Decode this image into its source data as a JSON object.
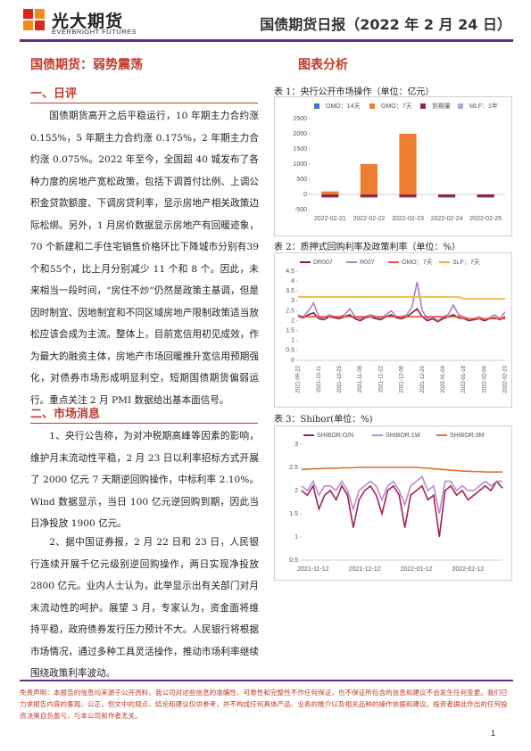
{
  "header": {
    "brand": "光大期货",
    "brand_en": "EVERBRIGHT FUTURES",
    "title": "国债期货日报（2022 年 2 月 24 日）"
  },
  "left": {
    "headline": "国债期货：弱势震荡",
    "section1": {
      "heading": "一、日评",
      "paragraphs": [
        "国债期货高开之后平稳运行，10 年期主力合约涨 0.155%，5 年期主力合约涨 0.175%，2 年期主力合约涨 0.075%。2022 年至今，全国超 40 城发布了各种力度的房地产宽松政策，包括下调首付比例、上调公积金贷款额度、下调房贷利率，显示房地产相关政策边际松绑。另外，1 月房价数据显示房地产有回暖迹象，70 个新建和二手住宅销售价格环比下降城市分别有39个和55个，比上月分别减少 11 个和 8 个。因此，未来相当一段时间，“房住不炒”仍然是政策主基调，但是因时制宜、因地制宜和不同区域房地产限制政策适当放松应该会成为主流。整体上，目前宽信用初见成效，作为最大的融资主体，房地产市场回暖推升宽信用预期强化，对债券市场形成明显利空，短期国债期货偏弱运行。重点关注 2 月 PMI 数据给出基本面信号。"
      ]
    },
    "section2": {
      "heading": "二、市场消息",
      "paragraphs": [
        "1、央行公告称，为对冲税期高峰等因素的影响，维护月末流动性平稳，2 月 23 日以利率招标方式开展了 2000 亿元 7 天期逆回购操作，中标利率 2.10%。Wind 数据显示，当日 100 亿元逆回购到期，因此当日净投放 1900 亿元。",
        "2、据中国证券报，2 月 22 日和 23 日，人民银行连续开展千亿元级别逆回购操作，两日实现净投放 2800 亿元。业内人士认为，此举显示出有关部门对月末流动性的呵护。展望 3 月，专家认为，资金面将维持平稳，政府债券发行压力预计不大。人民银行将根据市场情况，通过多种工具灵活操作，推动市场利率继续围绕政策利率波动。"
      ]
    }
  },
  "right_heading": "图表分析",
  "chart_data": [
    {
      "type": "bar",
      "title": "表 1：央行公开市场操作（单位：亿元）",
      "categories": [
        "2022-02-21",
        "2022-02-22",
        "2022-02-23",
        "2022-02-24",
        "2022-02-25"
      ],
      "series": [
        {
          "name": "OMO：14天",
          "color": "#4472c4",
          "values": [
            0,
            0,
            0,
            0,
            0
          ]
        },
        {
          "name": "OMO：7天",
          "color": "#ed7d31",
          "values": [
            100,
            1000,
            2000,
            0,
            0
          ]
        },
        {
          "name": "到期量",
          "color": "#8b2a4a",
          "values": [
            -100,
            -100,
            -100,
            -100,
            -100
          ]
        },
        {
          "name": "MLF：1年",
          "color": "#b4a7d6",
          "values": [
            0,
            0,
            0,
            0,
            0
          ]
        }
      ],
      "ylim": [
        -500,
        2500
      ],
      "yticks": [
        -500,
        0,
        500,
        1000,
        1500,
        2000,
        2500
      ],
      "grid": false,
      "legend": "top"
    },
    {
      "type": "line",
      "title": "表 2：质押式回购利率及政策利率（单位：%）",
      "categories": [
        "2021-09-22",
        null,
        null,
        null,
        "2021-10-11",
        null,
        null,
        null,
        "2021-10-25",
        null,
        null,
        null,
        "2021-11-08",
        null,
        null,
        null,
        "2021-11-22",
        null,
        null,
        null,
        "2021-12-06",
        null,
        null,
        null,
        "2021-12-20",
        null,
        null,
        null,
        "2022-01-04",
        null,
        null,
        null,
        "2022-01-18",
        null,
        null,
        null,
        "2022-02-09",
        null,
        null,
        null,
        "2022-02-23"
      ],
      "series": [
        {
          "name": "DR007",
          "color": "#8b1a3a",
          "values": [
            2.2,
            2.15,
            2.3,
            2.4,
            2.1,
            2.05,
            2.2,
            2.15,
            2.1,
            2.2,
            2.3,
            2.1,
            2.0,
            2.15,
            2.2,
            2.1,
            2.05,
            2.2,
            2.3,
            2.15,
            2.1,
            2.2,
            2.4,
            2.6,
            2.2,
            2.0,
            2.1,
            1.95,
            2.1,
            2.2,
            2.3,
            2.15,
            2.1,
            2.0,
            2.05,
            2.1,
            2.0,
            2.1,
            2.15,
            2.05,
            2.2
          ]
        },
        {
          "name": "R007",
          "color": "#b07cc6",
          "values": [
            2.3,
            2.2,
            2.5,
            2.9,
            2.2,
            2.1,
            2.3,
            2.2,
            2.2,
            2.3,
            2.6,
            2.2,
            2.1,
            2.2,
            2.3,
            2.2,
            2.1,
            2.3,
            2.5,
            2.2,
            2.2,
            2.3,
            2.7,
            3.95,
            2.5,
            2.1,
            2.2,
            2.0,
            2.2,
            2.3,
            2.8,
            2.3,
            2.2,
            2.1,
            2.1,
            2.2,
            2.05,
            2.15,
            2.3,
            2.1,
            2.45
          ]
        },
        {
          "name": "OMO：7天",
          "color": "#e0503a",
          "values": [
            2.2,
            2.2,
            2.2,
            2.2,
            2.2,
            2.2,
            2.2,
            2.2,
            2.2,
            2.2,
            2.2,
            2.2,
            2.2,
            2.2,
            2.2,
            2.2,
            2.2,
            2.2,
            2.2,
            2.2,
            2.2,
            2.2,
            2.2,
            2.2,
            2.2,
            2.2,
            2.2,
            2.2,
            2.2,
            2.2,
            2.2,
            2.2,
            2.1,
            2.1,
            2.1,
            2.1,
            2.1,
            2.1,
            2.1,
            2.1,
            2.1
          ]
        },
        {
          "name": "SLF：7天",
          "color": "#f0b030",
          "values": [
            3.2,
            3.2,
            3.2,
            3.2,
            3.2,
            3.2,
            3.2,
            3.2,
            3.2,
            3.2,
            3.2,
            3.2,
            3.2,
            3.2,
            3.2,
            3.2,
            3.2,
            3.2,
            3.2,
            3.2,
            3.2,
            3.2,
            3.2,
            3.2,
            3.2,
            3.2,
            3.2,
            3.2,
            3.2,
            3.2,
            3.2,
            3.2,
            3.1,
            3.1,
            3.1,
            3.1,
            3.1,
            3.1,
            3.1,
            3.1,
            3.1
          ]
        }
      ],
      "ylim": [
        0,
        4.5
      ],
      "yticks": [
        0,
        0.5,
        1,
        1.5,
        2,
        2.5,
        3,
        3.5,
        4,
        4.5
      ],
      "grid": false,
      "legend": "top",
      "rotate_x_labels": true
    },
    {
      "type": "line",
      "title": "表 3：Shibor(单位：%)",
      "categories": [
        null,
        null,
        "2021-11-12",
        null,
        null,
        null,
        null,
        null,
        null,
        null,
        null,
        "2021-12-12",
        null,
        null,
        null,
        null,
        null,
        null,
        null,
        null,
        "2022-01-12",
        null,
        null,
        null,
        null,
        null,
        null,
        null,
        null,
        "2022-02-12",
        null,
        null,
        null,
        null,
        null,
        null
      ],
      "series": [
        {
          "name": "SHIBOR:O/N",
          "color": "#a3234f",
          "values": [
            2.0,
            1.9,
            2.1,
            1.6,
            1.9,
            2.0,
            1.8,
            2.1,
            1.9,
            1.2,
            1.8,
            2.0,
            2.1,
            1.9,
            1.5,
            2.0,
            2.1,
            1.9,
            1.2,
            1.9,
            2.0,
            2.1,
            1.8,
            1.9,
            1.0,
            2.0,
            2.1,
            1.9,
            2.0,
            1.8,
            1.9,
            2.0,
            2.1,
            2.0,
            2.2,
            2.05
          ]
        },
        {
          "name": "SHIBOR:1W",
          "color": "#b88ad0",
          "values": [
            2.1,
            2.0,
            2.2,
            1.9,
            2.1,
            2.1,
            2.0,
            2.2,
            2.0,
            1.6,
            2.0,
            2.1,
            2.2,
            2.1,
            1.8,
            2.1,
            2.2,
            2.0,
            1.7,
            2.1,
            2.2,
            2.3,
            2.0,
            2.1,
            1.5,
            2.2,
            2.2,
            2.0,
            2.1,
            2.0,
            2.0,
            2.1,
            2.2,
            2.1,
            2.2,
            2.2
          ]
        },
        {
          "name": "SHIBOR:3M",
          "color": "#e0702a",
          "values": [
            2.45,
            2.46,
            2.47,
            2.47,
            2.48,
            2.48,
            2.48,
            2.49,
            2.49,
            2.49,
            2.5,
            2.5,
            2.5,
            2.5,
            2.5,
            2.5,
            2.5,
            2.5,
            2.5,
            2.5,
            2.5,
            2.49,
            2.48,
            2.47,
            2.46,
            2.45,
            2.44,
            2.43,
            2.42,
            2.42,
            2.41,
            2.41,
            2.4,
            2.4,
            2.4,
            2.4
          ]
        }
      ],
      "ylim": [
        0.5,
        3
      ],
      "yticks": [
        0.5,
        1,
        1.5,
        2,
        2.5,
        3
      ],
      "grid": false,
      "legend": "top"
    }
  ],
  "footer": {
    "disclaimer": "免责声明：本报告的信息均来源于公开资料，我公司对这些信息的准确性、可靠性和完整性不作任何保证，也不保证所包含的信息和建议不会发生任何变更。我们已力求报告内容的客观、公正，但文中的观点、结论和建议仅供参考，并不构成任何具体产品、业务的推介以及相关品种的操作依据和建议。投资者据此作出的任何投资决策自负盈亏，与本公司和作者无关。",
    "page": "1"
  }
}
